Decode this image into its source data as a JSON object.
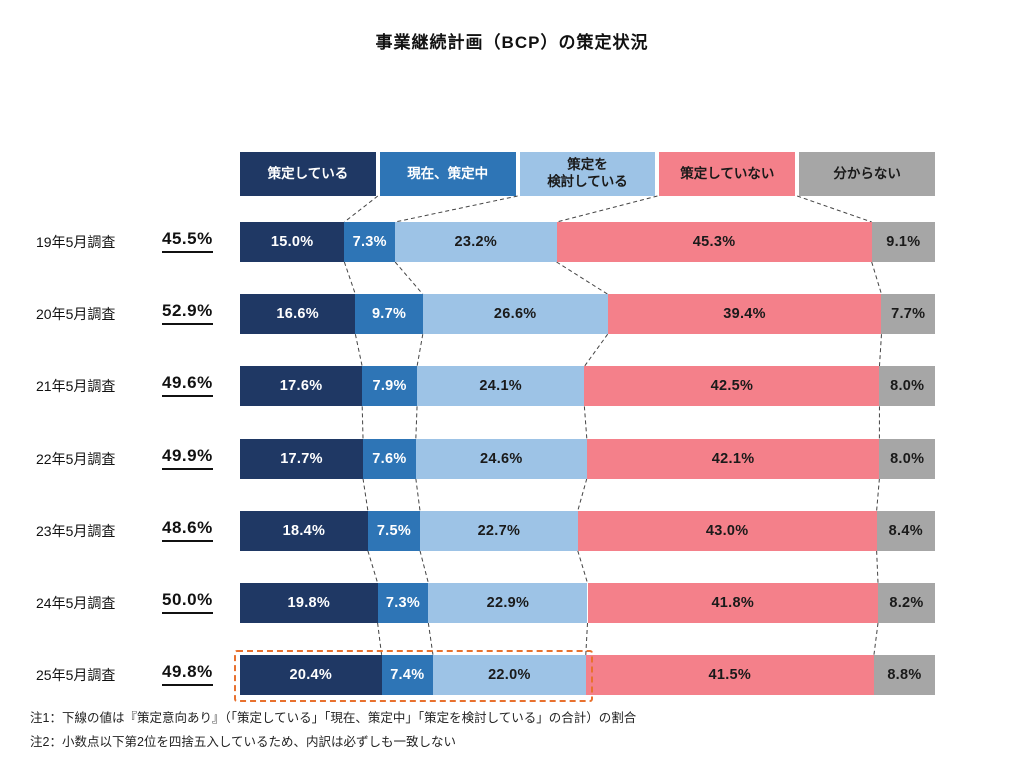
{
  "title": "事業継続計画（BCP）の策定状況",
  "notes": [
    "注1：下線の値は『策定意向あり』（「策定している」「現在、策定中」「策定を検討している」の合計）の割合",
    "注2：小数点以下第2位を四捨五入しているため、内訳は必ずしも一致しない"
  ],
  "chart_data": {
    "type": "bar",
    "subtype": "horizontal-stacked-100pct",
    "legend_position": "top",
    "grid": false,
    "series_legend": [
      {
        "label": "策定している",
        "color": "#1f3864",
        "text_color": "#ffffff"
      },
      {
        "label": "現在、策定中",
        "color": "#2e75b6",
        "text_color": "#ffffff"
      },
      {
        "label": "策定を\n検討している",
        "color": "#9dc3e6",
        "text_color": "#1a1a1a"
      },
      {
        "label": "策定していない",
        "color": "#f4808a",
        "text_color": "#1a1a1a"
      },
      {
        "label": "分からない",
        "color": "#a6a6a6",
        "text_color": "#1a1a1a"
      }
    ],
    "rows": [
      {
        "label": "19年5月調査",
        "total": "45.5%",
        "values": [
          15.0,
          7.3,
          23.2,
          45.3,
          9.1
        ]
      },
      {
        "label": "20年5月調査",
        "total": "52.9%",
        "values": [
          16.6,
          9.7,
          26.6,
          39.4,
          7.7
        ]
      },
      {
        "label": "21年5月調査",
        "total": "49.6%",
        "values": [
          17.6,
          7.9,
          24.1,
          42.5,
          8.0
        ]
      },
      {
        "label": "22年5月調査",
        "total": "49.9%",
        "values": [
          17.7,
          7.6,
          24.6,
          42.1,
          8.0
        ]
      },
      {
        "label": "23年5月調査",
        "total": "48.6%",
        "values": [
          18.4,
          7.5,
          22.7,
          43.0,
          8.4
        ]
      },
      {
        "label": "24年5月調査",
        "total": "50.0%",
        "values": [
          19.8,
          7.3,
          22.9,
          41.8,
          8.2
        ]
      },
      {
        "label": "25年5月調査",
        "total": "49.8%",
        "values": [
          20.4,
          7.4,
          22.0,
          41.5,
          8.8
        ],
        "highlight_first_n": 3
      }
    ],
    "highlight_color": "#e8712e",
    "connector_color": "#444444"
  }
}
